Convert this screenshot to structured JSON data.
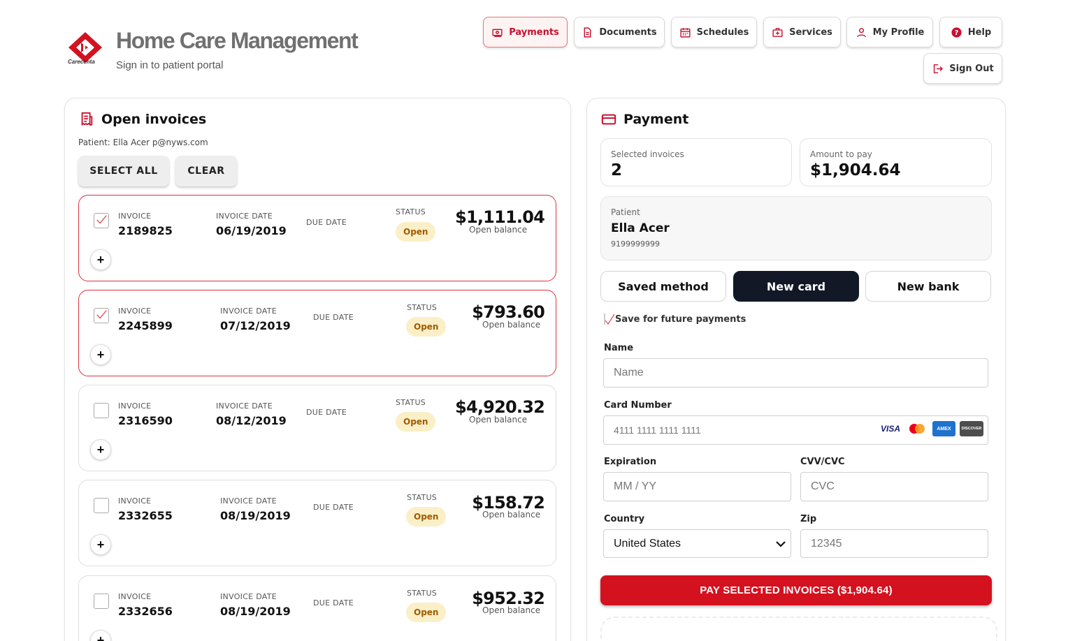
{
  "header": {
    "brand_logo_text": "Carecenta",
    "app_title": "Home Care Management",
    "subtitle": "Sign in to patient portal",
    "nav": [
      {
        "label": "Payments",
        "icon": "payments-icon",
        "active": true
      },
      {
        "label": "Documents",
        "icon": "document-icon",
        "active": false
      },
      {
        "label": "Schedules",
        "icon": "calendar-icon",
        "active": false
      },
      {
        "label": "Services",
        "icon": "medical-kit-icon",
        "active": false
      },
      {
        "label": "My Profile",
        "icon": "user-icon",
        "active": false
      },
      {
        "label": "Help",
        "icon": "help-icon",
        "active": false
      },
      {
        "label": "Sign Out",
        "icon": "sign-out-icon",
        "active": false
      }
    ]
  },
  "invoices_panel": {
    "title": "Open invoices",
    "patient_prefix": "Patient:",
    "patient_name": "Ella Acer",
    "patient_email": "p@nyws.com",
    "select_all_label": "SELECT ALL",
    "clear_label": "CLEAR",
    "col_invoice": "INVOICE",
    "col_invoice_date": "INVOICE DATE",
    "col_due_date": "DUE DATE",
    "col_status": "STATUS",
    "open_balance_label": "Open balance",
    "expand_label": "+",
    "invoices": [
      {
        "number": "2189825",
        "date": "06/19/2019",
        "status": "Open",
        "amount": "$1,111.04",
        "selected": true
      },
      {
        "number": "2245899",
        "date": "07/12/2019",
        "status": "Open",
        "amount": "$793.60",
        "selected": true
      },
      {
        "number": "2316590",
        "date": "08/12/2019",
        "status": "Open",
        "amount": "$4,920.32",
        "selected": false
      },
      {
        "number": "2332655",
        "date": "08/19/2019",
        "status": "Open",
        "amount": "$158.72",
        "selected": false
      },
      {
        "number": "2332656",
        "date": "08/19/2019",
        "status": "Open",
        "amount": "$952.32",
        "selected": false
      }
    ]
  },
  "payment_panel": {
    "title": "Payment",
    "selected_invoices_label": "Selected invoices",
    "selected_invoices_value": "2",
    "amount_label": "Amount to pay",
    "amount_value": "$1,904.64",
    "patient_label": "Patient",
    "patient_name": "Ella Acer",
    "patient_phone": "9199999999",
    "methods": [
      {
        "label": "Saved method",
        "active": false
      },
      {
        "label": "New card",
        "active": true
      },
      {
        "label": "New bank",
        "active": false
      }
    ],
    "save_future_label": "Save for future payments",
    "name_label": "Name",
    "name_placeholder": "Name",
    "card_label": "Card Number",
    "card_placeholder": "4111 1111 1111 1111",
    "card_brands": [
      "VISA",
      "Mastercard",
      "AMEX",
      "DISCOVER"
    ],
    "expiration_label": "Expiration",
    "expiration_placeholder": "MM / YY",
    "cvv_label": "CVV/CVC",
    "cvv_placeholder": "CVC",
    "country_label": "Country",
    "country_value": "United States",
    "zip_label": "Zip",
    "zip_placeholder": "12345",
    "pay_button_label": "PAY SELECTED INVOICES ($1,904.64)"
  },
  "colors": {
    "brand_red": "#d4111f",
    "dark": "#121826",
    "status_bg": "#fbefc7"
  }
}
